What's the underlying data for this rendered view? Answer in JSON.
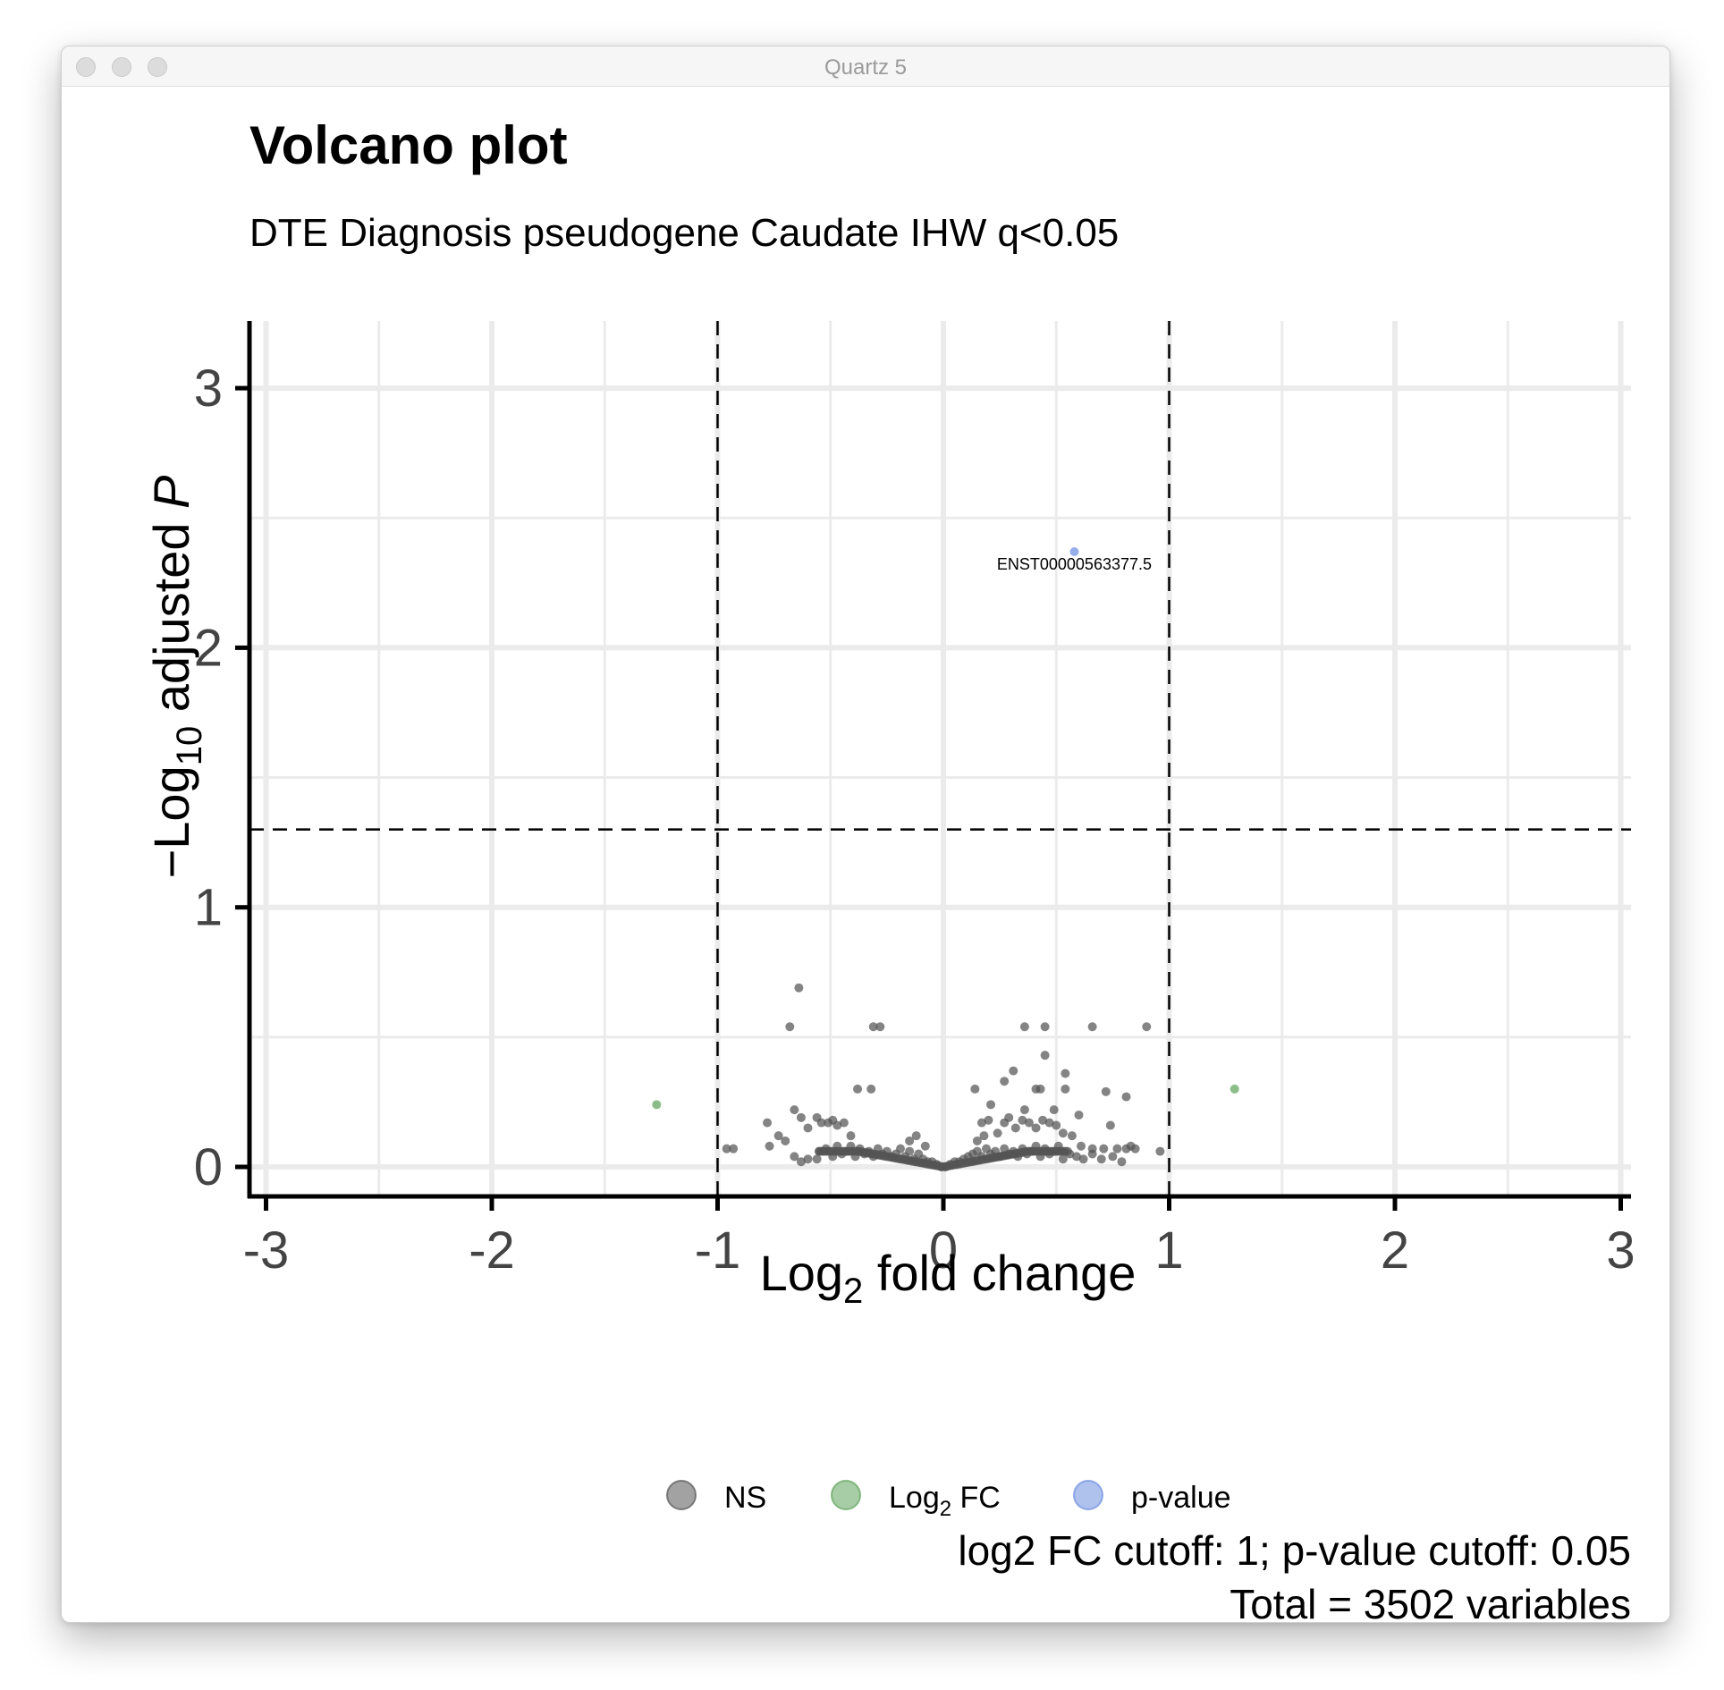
{
  "window": {
    "title": "Quartz 5",
    "buttons": [
      "close",
      "minimize",
      "zoom"
    ]
  },
  "chart_data": {
    "type": "scatter",
    "title": "Volcano plot",
    "subtitle": "DTE Diagnosis pseudogene Caudate IHW q<0.05",
    "xlabel": "Log2 fold change",
    "ylabel": "-Log10 adjusted P",
    "xlim": [
      -3,
      3
    ],
    "ylim": [
      -0.15,
      3.15
    ],
    "x_ticks": [
      "-3",
      "-2",
      "-1",
      "0",
      "1",
      "2",
      "3"
    ],
    "y_ticks": [
      "0",
      "1",
      "2",
      "3"
    ],
    "grid": true,
    "cutoff_lines": {
      "x": [
        -1,
        1
      ],
      "y": 1.3,
      "style": "dashed"
    },
    "colors": {
      "NS": "#555555",
      "Log2 FC": "#5fa45c",
      "p-value": "#6d8fe0"
    },
    "legend": {
      "position": "bottom",
      "items": [
        {
          "name": "NS",
          "label": "NS",
          "color": "#555555"
        },
        {
          "name": "Log2 FC",
          "label": "Log",
          "sub": "2",
          "suffix": " FC",
          "color": "#5fa45c"
        },
        {
          "name": "p-value",
          "label": "p-value",
          "color": "#6d8fe0"
        }
      ]
    },
    "caption": "log2 FC cutoff: 1; p-value cutoff: 0.05",
    "caption2": "Total = 3502 variables",
    "series": [
      {
        "name": "NS",
        "points": [
          [
            -0.64,
            0.69
          ],
          [
            -0.68,
            0.54
          ],
          [
            -0.31,
            0.54
          ],
          [
            -0.28,
            0.54
          ],
          [
            -0.38,
            0.3
          ],
          [
            -0.32,
            0.3
          ],
          [
            -0.96,
            0.07
          ],
          [
            -0.93,
            0.07
          ],
          [
            -0.78,
            0.17
          ],
          [
            -0.77,
            0.08
          ],
          [
            -0.73,
            0.12
          ],
          [
            -0.7,
            0.1
          ],
          [
            -0.66,
            0.22
          ],
          [
            -0.63,
            0.19
          ],
          [
            -0.6,
            0.15
          ],
          [
            -0.56,
            0.19
          ],
          [
            -0.54,
            0.17
          ],
          [
            -0.51,
            0.17
          ],
          [
            -0.49,
            0.18
          ],
          [
            -0.47,
            0.16
          ],
          [
            -0.44,
            0.17
          ],
          [
            -0.41,
            0.12
          ],
          [
            -0.66,
            0.04
          ],
          [
            -0.63,
            0.02
          ],
          [
            -0.6,
            0.03
          ],
          [
            -0.56,
            0.03
          ],
          [
            -0.55,
            0.06
          ],
          [
            -0.52,
            0.07
          ],
          [
            -0.49,
            0.04
          ],
          [
            -0.47,
            0.08
          ],
          [
            -0.45,
            0.05
          ],
          [
            -0.43,
            0.06
          ],
          [
            -0.41,
            0.08
          ],
          [
            -0.39,
            0.04
          ],
          [
            -0.37,
            0.07
          ],
          [
            -0.35,
            0.05
          ],
          [
            -0.33,
            0.06
          ],
          [
            -0.31,
            0.04
          ],
          [
            -0.29,
            0.07
          ],
          [
            -0.27,
            0.05
          ],
          [
            -0.25,
            0.06
          ],
          [
            -0.23,
            0.04
          ],
          [
            -0.21,
            0.05
          ],
          [
            -0.19,
            0.07
          ],
          [
            -0.17,
            0.04
          ],
          [
            -0.15,
            0.06
          ],
          [
            -0.13,
            0.03
          ],
          [
            -0.11,
            0.05
          ],
          [
            -0.09,
            0.03
          ],
          [
            -0.07,
            0.02
          ],
          [
            -0.05,
            0.02
          ],
          [
            -0.03,
            0.01
          ],
          [
            -0.01,
            0.0
          ],
          [
            -0.15,
            0.1
          ],
          [
            -0.12,
            0.12
          ],
          [
            -0.08,
            0.08
          ],
          [
            0.01,
            0.0
          ],
          [
            0.03,
            0.01
          ],
          [
            0.05,
            0.02
          ],
          [
            0.07,
            0.02
          ],
          [
            0.09,
            0.03
          ],
          [
            0.11,
            0.04
          ],
          [
            0.13,
            0.05
          ],
          [
            0.15,
            0.06
          ],
          [
            0.17,
            0.04
          ],
          [
            0.19,
            0.07
          ],
          [
            0.21,
            0.05
          ],
          [
            0.23,
            0.06
          ],
          [
            0.25,
            0.04
          ],
          [
            0.27,
            0.07
          ],
          [
            0.29,
            0.05
          ],
          [
            0.31,
            0.06
          ],
          [
            0.33,
            0.04
          ],
          [
            0.35,
            0.07
          ],
          [
            0.37,
            0.05
          ],
          [
            0.39,
            0.06
          ],
          [
            0.41,
            0.08
          ],
          [
            0.43,
            0.04
          ],
          [
            0.45,
            0.07
          ],
          [
            0.47,
            0.05
          ],
          [
            0.49,
            0.06
          ],
          [
            0.51,
            0.08
          ],
          [
            0.53,
            0.03
          ],
          [
            0.56,
            0.05
          ],
          [
            0.59,
            0.04
          ],
          [
            0.62,
            0.03
          ],
          [
            0.66,
            0.05
          ],
          [
            0.7,
            0.03
          ],
          [
            0.75,
            0.04
          ],
          [
            0.79,
            0.02
          ],
          [
            0.83,
            0.08
          ],
          [
            0.96,
            0.06
          ],
          [
            0.15,
            0.1
          ],
          [
            0.18,
            0.12
          ],
          [
            0.17,
            0.17
          ],
          [
            0.2,
            0.18
          ],
          [
            0.24,
            0.13
          ],
          [
            0.27,
            0.17
          ],
          [
            0.29,
            0.19
          ],
          [
            0.32,
            0.15
          ],
          [
            0.35,
            0.18
          ],
          [
            0.38,
            0.17
          ],
          [
            0.41,
            0.15
          ],
          [
            0.44,
            0.18
          ],
          [
            0.47,
            0.17
          ],
          [
            0.5,
            0.16
          ],
          [
            0.53,
            0.13
          ],
          [
            0.57,
            0.12
          ],
          [
            0.61,
            0.08
          ],
          [
            0.66,
            0.07
          ],
          [
            0.71,
            0.07
          ],
          [
            0.74,
            0.16
          ],
          [
            0.77,
            0.07
          ],
          [
            0.81,
            0.07
          ],
          [
            0.85,
            0.07
          ],
          [
            0.14,
            0.3
          ],
          [
            0.21,
            0.24
          ],
          [
            0.27,
            0.33
          ],
          [
            0.31,
            0.37
          ],
          [
            0.36,
            0.22
          ],
          [
            0.41,
            0.3
          ],
          [
            0.43,
            0.3
          ],
          [
            0.54,
            0.3
          ],
          [
            0.54,
            0.36
          ],
          [
            0.45,
            0.43
          ],
          [
            0.72,
            0.29
          ],
          [
            0.81,
            0.27
          ],
          [
            0.36,
            0.54
          ],
          [
            0.45,
            0.54
          ],
          [
            0.66,
            0.54
          ],
          [
            0.9,
            0.54
          ],
          [
            0.49,
            0.22
          ],
          [
            0.6,
            0.2
          ]
        ]
      },
      {
        "name": "Log2 FC",
        "points": [
          [
            -1.27,
            0.24
          ],
          [
            1.29,
            0.3
          ]
        ]
      },
      {
        "name": "p-value",
        "points": [
          [
            0.58,
            2.37
          ]
        ]
      }
    ],
    "annotations": [
      {
        "label": "ENST00000563377.5",
        "x": 0.58,
        "y": 2.37
      }
    ]
  }
}
